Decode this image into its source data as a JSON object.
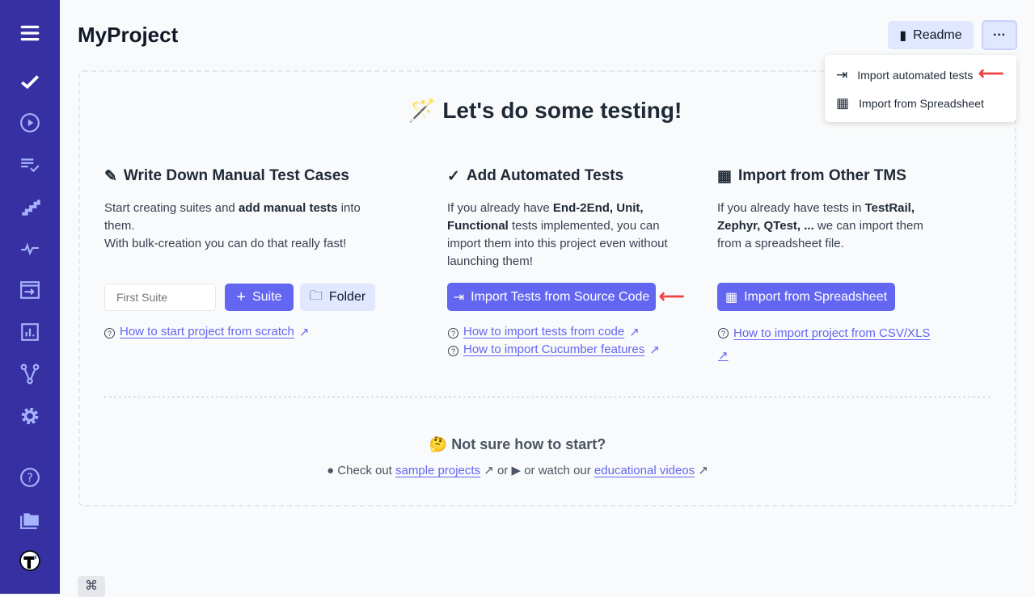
{
  "sidebar": {
    "items": [
      "menu-icon",
      "checkmark-icon",
      "play-icon",
      "checklist-icon",
      "steps-icon",
      "pulse-icon",
      "import-icon",
      "analytics-icon",
      "branch-icon",
      "settings-icon",
      "help-icon",
      "projects-icon",
      "testomatio-logo"
    ]
  },
  "header": {
    "title": "MyProject",
    "readme_label": "Readme",
    "more_label": "···"
  },
  "menu": {
    "items": [
      {
        "label": "Import automated tests",
        "icon": "import-icon"
      },
      {
        "label": "Import from Spreadsheet",
        "icon": "table-plus-icon"
      }
    ]
  },
  "main": {
    "hero": "Let's do some testing!",
    "manual": {
      "title": "Write Down Manual Test Cases",
      "t1": "Start creating suites and ",
      "b1": "add manual tests",
      "t2": " into them.",
      "t3": "With bulk-creation you can do that really fast!",
      "input_placeholder": "First Suite",
      "suite_label": "Suite",
      "folder_label": "Folder",
      "link": "How to start project from scratch"
    },
    "automated": {
      "title": "Add Automated Tests",
      "t1": "If you already have ",
      "b1": "End-2End, Unit, Functional",
      "t2": " tests implemented, you can import them into this project even without launching them!",
      "button": "Import Tests from Source Code",
      "links": [
        "How to import tests from code",
        "How to import Cucumber features"
      ]
    },
    "tms": {
      "title": "Import from Other TMS",
      "t1": "If you already have tests in ",
      "b1": "TestRail, Zephyr, QTest, ...",
      "t2": " we can import them from a spreadsheet file.",
      "button": "Import from Spreadsheet",
      "link": "How to import project from CSV/XLS"
    },
    "bottom": {
      "title": "Not sure how to start?",
      "t1": "Check out ",
      "l1": "sample projects",
      "t2": " or ",
      "t3": " or watch our ",
      "l2": "educational videos"
    }
  },
  "colors": {
    "sidebar": "#3730a3",
    "accent": "#6366f1",
    "accent_light": "#e0e7ff",
    "arrow": "#ef4444"
  },
  "footer": {
    "shortcut": "⌘"
  }
}
